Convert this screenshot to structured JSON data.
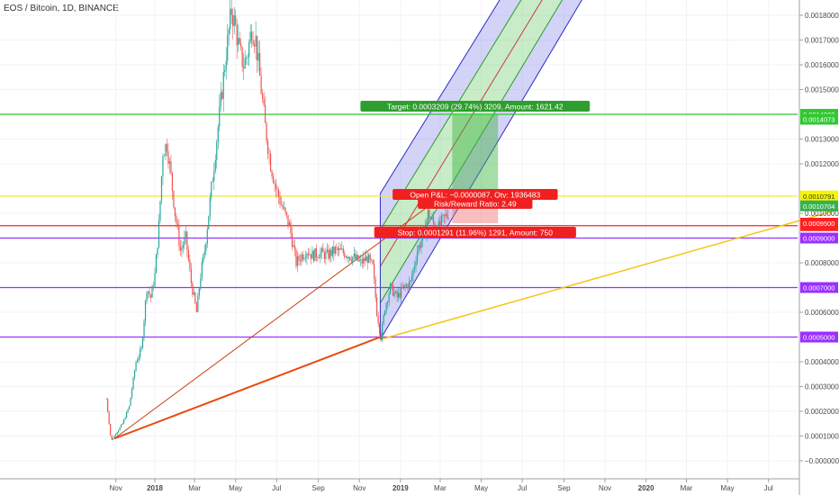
{
  "chart_data": {
    "type": "candlestick",
    "title": "EOS / Bitcoin, 1D, BINANCE",
    "y_axis": {
      "position": "right",
      "ylim": [
        -1e-05,
        0.00019
      ],
      "ticks": [
        {
          "label": "0.0018000",
          "v": 0.00018
        },
        {
          "label": "0.0017000",
          "v": 0.00017
        },
        {
          "label": "0.0016000",
          "v": 0.00016
        },
        {
          "label": "0.0015000",
          "v": 0.00015
        },
        {
          "label": "0.0013000",
          "v": 0.00013
        },
        {
          "label": "0.0012000",
          "v": 0.00012
        },
        {
          "label": "0.0010000",
          "v": 0.0001
        },
        {
          "label": "0.0008000",
          "v": 8e-05
        },
        {
          "label": "0.0006000",
          "v": 6e-05
        },
        {
          "label": "0.0004000",
          "v": 4e-05
        },
        {
          "label": "0.0003000",
          "v": 3e-05
        },
        {
          "label": "0.0002000",
          "v": 2e-05
        },
        {
          "label": "0.0001000",
          "v": 1e-05
        },
        {
          "label": "−0.0000000",
          "v": 0.0
        }
      ]
    },
    "x_axis": {
      "ticks": [
        {
          "label": "Nov",
          "t": -58
        },
        {
          "label": "2018",
          "t": 0
        },
        {
          "label": "Mar",
          "t": 59
        },
        {
          "label": "May",
          "t": 120
        },
        {
          "label": "Jul",
          "t": 181
        },
        {
          "label": "Sep",
          "t": 243
        },
        {
          "label": "Nov",
          "t": 304
        },
        {
          "label": "2019",
          "t": 365
        },
        {
          "label": "Mar",
          "t": 424
        },
        {
          "label": "May",
          "t": 485
        },
        {
          "label": "Jul",
          "t": 546
        },
        {
          "label": "Sep",
          "t": 608
        },
        {
          "label": "Nov",
          "t": 669
        },
        {
          "label": "2020",
          "t": 730
        },
        {
          "label": "Mar",
          "t": 790
        },
        {
          "label": "May",
          "t": 851
        },
        {
          "label": "Jul",
          "t": 912
        }
      ]
    },
    "price_path": [
      {
        "t": -72,
        "p": 2.5e-05
      },
      {
        "t": -65,
        "p": 8e-06
      },
      {
        "t": -58,
        "p": 1.1e-05
      },
      {
        "t": -48,
        "p": 1.5e-05
      },
      {
        "t": -38,
        "p": 2.2e-05
      },
      {
        "t": -28,
        "p": 4e-05
      },
      {
        "t": -20,
        "p": 4.5e-05
      },
      {
        "t": -12,
        "p": 7e-05
      },
      {
        "t": -6,
        "p": 6.6e-05
      },
      {
        "t": 0,
        "p": 7.5e-05
      },
      {
        "t": 6,
        "p": 9.5e-05
      },
      {
        "t": 12,
        "p": 0.000125
      },
      {
        "t": 18,
        "p": 0.000128
      },
      {
        "t": 24,
        "p": 0.000115
      },
      {
        "t": 30,
        "p": 0.0001
      },
      {
        "t": 38,
        "p": 8.5e-05
      },
      {
        "t": 46,
        "p": 9e-05
      },
      {
        "t": 54,
        "p": 7.2e-05
      },
      {
        "t": 62,
        "p": 6e-05
      },
      {
        "t": 68,
        "p": 7.5e-05
      },
      {
        "t": 74,
        "p": 8.5e-05
      },
      {
        "t": 82,
        "p": 0.000105
      },
      {
        "t": 90,
        "p": 0.000125
      },
      {
        "t": 98,
        "p": 0.000145
      },
      {
        "t": 106,
        "p": 0.000165
      },
      {
        "t": 114,
        "p": 0.000182
      },
      {
        "t": 120,
        "p": 0.000175
      },
      {
        "t": 126,
        "p": 0.000165
      },
      {
        "t": 132,
        "p": 0.00016
      },
      {
        "t": 138,
        "p": 0.000165
      },
      {
        "t": 144,
        "p": 0.000175
      },
      {
        "t": 150,
        "p": 0.00017
      },
      {
        "t": 156,
        "p": 0.000155
      },
      {
        "t": 164,
        "p": 0.000135
      },
      {
        "t": 172,
        "p": 0.00012
      },
      {
        "t": 180,
        "p": 0.00011
      },
      {
        "t": 190,
        "p": 0.000102
      },
      {
        "t": 200,
        "p": 9.5e-05
      },
      {
        "t": 210,
        "p": 8e-05
      },
      {
        "t": 218,
        "p": 8.3e-05
      },
      {
        "t": 226,
        "p": 8.5e-05
      },
      {
        "t": 234,
        "p": 8.3e-05
      },
      {
        "t": 244,
        "p": 8.4e-05
      },
      {
        "t": 256,
        "p": 8.3e-05
      },
      {
        "t": 268,
        "p": 8.5e-05
      },
      {
        "t": 282,
        "p": 8.4e-05
      },
      {
        "t": 296,
        "p": 8.2e-05
      },
      {
        "t": 306,
        "p": 8e-05
      },
      {
        "t": 316,
        "p": 8.2e-05
      },
      {
        "t": 324,
        "p": 7.8e-05
      },
      {
        "t": 330,
        "p": 6e-05
      },
      {
        "t": 336,
        "p": 5e-05
      },
      {
        "t": 342,
        "p": 6.2e-05
      },
      {
        "t": 350,
        "p": 7e-05
      },
      {
        "t": 360,
        "p": 6.6e-05
      },
      {
        "t": 370,
        "p": 7e-05
      },
      {
        "t": 380,
        "p": 7.2e-05
      },
      {
        "t": 390,
        "p": 8.5e-05
      },
      {
        "t": 400,
        "p": 9.2e-05
      },
      {
        "t": 406,
        "p": 0.0001
      },
      {
        "t": 412,
        "p": 9.7e-05
      },
      {
        "t": 418,
        "p": 9.3e-05
      },
      {
        "t": 424,
        "p": 9.5e-05
      },
      {
        "t": 430,
        "p": 9.8e-05
      },
      {
        "t": 436,
        "p": 0.0001
      }
    ],
    "horizontal_lines": [
      {
        "price": 0.00014,
        "label": "0.0014000",
        "color": "#32c832"
      },
      {
        "price": 0.000107,
        "label": "0.0010791",
        "color": "#f5f500"
      },
      {
        "price": 9.5e-05,
        "label": "0.0009500",
        "color": "#ff2020"
      },
      {
        "price": 9e-05,
        "label": "0.0009000",
        "color": "#9b30ff"
      },
      {
        "price": 7e-05,
        "label": "0.0007000",
        "color": "#9b30ff"
      },
      {
        "price": 5e-05,
        "label": "0.0005000",
        "color": "#9b30ff"
      }
    ],
    "extra_axis_labels": [
      {
        "price": 0.000138,
        "label": "0.0014073",
        "color": "#32c832"
      },
      {
        "price": 0.000103,
        "label": "0.0010704",
        "color": "#37b24d"
      },
      {
        "price": 9.6e-05,
        "label": "0.0009500",
        "color": "#ff2020"
      }
    ],
    "trendlines": [
      {
        "from": {
          "t": -60,
          "p": 9e-06
        },
        "to": {
          "t": 335,
          "p": 5e-05
        },
        "color": "#e84a0c",
        "width": 2
      },
      {
        "from": {
          "t": -60,
          "p": 9e-06
        },
        "to": {
          "t": 442,
          "p": 0.00011
        },
        "color": "#c8400c",
        "width": 1
      },
      {
        "from": {
          "t": 335,
          "p": 4.9e-05
        },
        "to": {
          "t": 1100,
          "p": 0.000108
        },
        "color": "#f5c518",
        "width": 1.5
      }
    ],
    "pitchfork": {
      "start_t": 335,
      "start_prices": [
        0.000108,
        7.85e-05,
        4.9e-05
      ],
      "end_t": 680,
      "end_prices": [
        0.00026,
        0.000233,
        0.000207
      ],
      "fills": [
        "#8080e8",
        "#60c860",
        "#60c860",
        "#8080e8"
      ]
    },
    "position": {
      "entry_t": 442,
      "exit_t": 510,
      "entry": 0.000107,
      "target": 0.00014,
      "stop": 9.6e-05,
      "target_label": "Target: 0.0003209 (29.74%) 3209, Amount: 1621.42",
      "pnl_label": "Open P&L: −0.0000087, Qty: 1936483",
      "rr_label": "Risk/Reward Ratio: 2.49",
      "stop_label": "Stop: 0.0001291 (11.96%) 1291, Amount: 750"
    }
  }
}
